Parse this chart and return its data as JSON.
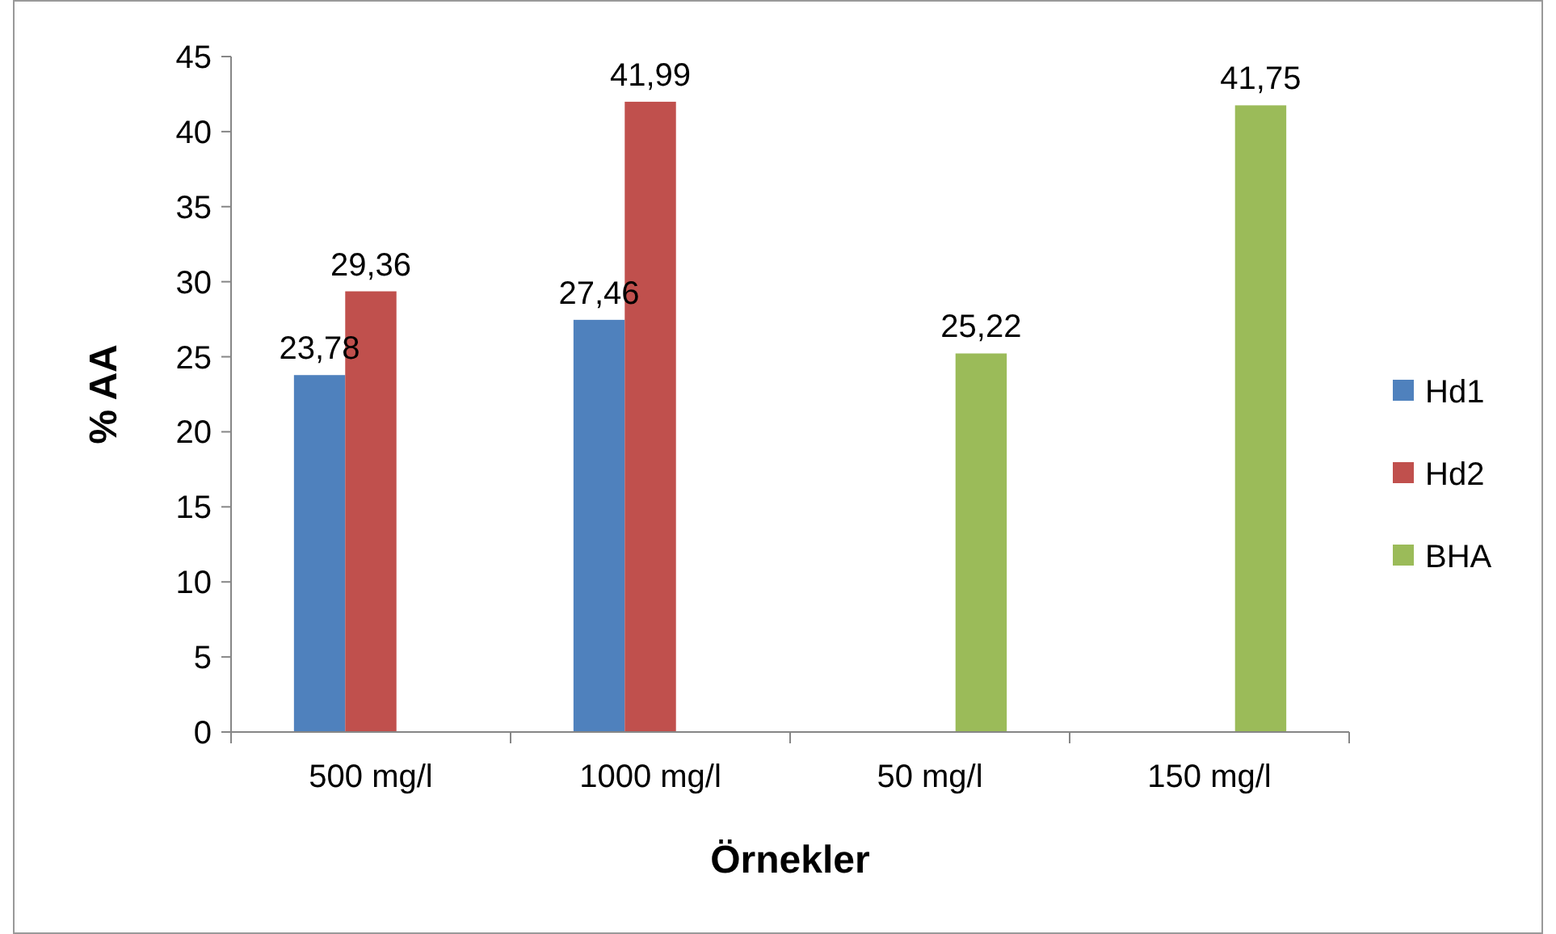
{
  "chart_data": {
    "type": "bar",
    "xlabel": "Örnekler",
    "ylabel": "% AA",
    "categories": [
      "500 mg/l",
      "1000 mg/l",
      "50 mg/l",
      "150 mg/l"
    ],
    "series": [
      {
        "name": "Hd1",
        "color": "#4f81bd",
        "values": [
          23.78,
          27.46,
          null,
          null
        ],
        "value_labels": [
          "23,78",
          "27,46",
          null,
          null
        ]
      },
      {
        "name": "Hd2",
        "color": "#c0504d",
        "values": [
          29.36,
          41.99,
          null,
          null
        ],
        "value_labels": [
          "29,36",
          "41,99",
          null,
          null
        ]
      },
      {
        "name": "BHA",
        "color": "#9bbb59",
        "values": [
          null,
          null,
          25.22,
          41.75
        ],
        "value_labels": [
          null,
          null,
          "25,22",
          "41,75"
        ]
      }
    ],
    "ylim": [
      0,
      45
    ],
    "yticks": [
      0,
      5,
      10,
      15,
      20,
      25,
      30,
      35,
      40,
      45
    ],
    "grid": false,
    "legend": "right"
  }
}
